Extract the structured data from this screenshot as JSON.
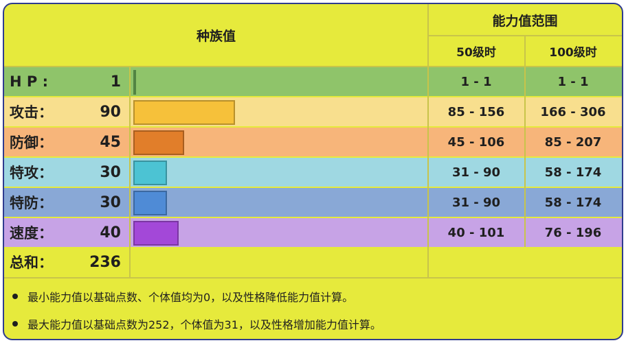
{
  "header": {
    "title": "种族值",
    "range_title": "能力值范围",
    "level50": "50级时",
    "level100": "100级时"
  },
  "stats": [
    {
      "name": "H P :",
      "value": "1",
      "base": 1,
      "lv50": "1 - 1",
      "lv100": "1 - 1",
      "row_color": "#8fc46a",
      "bar_color": "#6eb15a"
    },
    {
      "name": "攻击：",
      "value": "90",
      "base": 90,
      "lv50": "85 - 156",
      "lv100": "166 - 306",
      "row_color": "#f8df8e",
      "bar_color": "#f6c13a"
    },
    {
      "name": "防御：",
      "value": "45",
      "base": 45,
      "lv50": "45 - 106",
      "lv100": "85 - 207",
      "row_color": "#f7b57a",
      "bar_color": "#e17e2a"
    },
    {
      "name": "特攻：",
      "value": "30",
      "base": 30,
      "lv50": "31 - 90",
      "lv100": "58 - 174",
      "row_color": "#9fd8e2",
      "bar_color": "#4cc3d3"
    },
    {
      "name": "特防：",
      "value": "30",
      "base": 30,
      "lv50": "31 - 90",
      "lv100": "58 - 174",
      "row_color": "#89a8d6",
      "bar_color": "#4f8bd6"
    },
    {
      "name": "速度：",
      "value": "40",
      "base": 40,
      "lv50": "40 - 101",
      "lv100": "76 - 196",
      "row_color": "#c7a3e6",
      "bar_color": "#a348d8"
    }
  ],
  "total": {
    "name": "总和：",
    "value": "236"
  },
  "notes": [
    "最小能力值以基础点数、个体值均为0，以及性格降低能力值计算。",
    "最大能力值以基础点数为252，个体值为31，以及性格增加能力值计算。"
  ]
}
